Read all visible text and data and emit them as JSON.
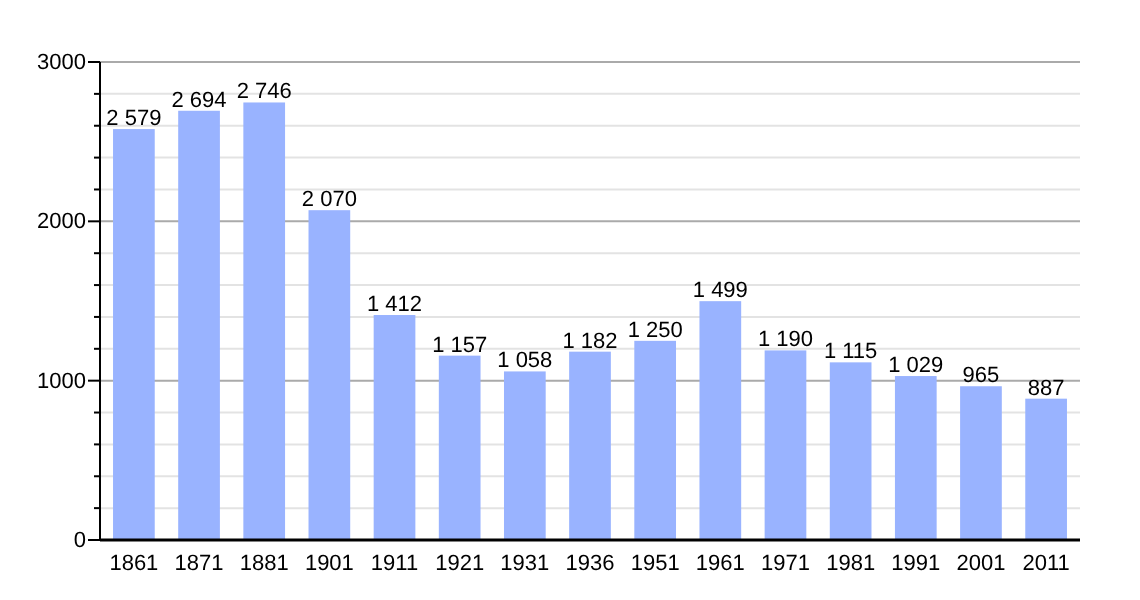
{
  "chart_data": {
    "type": "bar",
    "categories": [
      "1861",
      "1871",
      "1881",
      "1901",
      "1911",
      "1921",
      "1931",
      "1936",
      "1951",
      "1961",
      "1971",
      "1981",
      "1991",
      "2001",
      "2011"
    ],
    "values": [
      2579,
      2694,
      2746,
      2070,
      1412,
      1157,
      1058,
      1182,
      1250,
      1499,
      1190,
      1115,
      1029,
      965,
      887
    ],
    "value_labels": [
      "2 579",
      "2 694",
      "2 746",
      "2 070",
      "1 412",
      "1 157",
      "1 058",
      "1 182",
      "1 250",
      "1 499",
      "1 190",
      "1 115",
      "1 029",
      "965",
      "887"
    ],
    "color": "#99b3ff",
    "ylim": [
      0,
      3000
    ],
    "yticks": [
      0,
      {
        "value": 200,
        "label": null
      },
      {
        "value": 400,
        "label": null
      },
      {
        "value": 600,
        "label": null
      },
      {
        "value": 800,
        "label": null
      },
      1000,
      {
        "value": 1200,
        "label": null
      },
      {
        "value": 1400,
        "label": null
      },
      {
        "value": 1600,
        "label": null
      },
      {
        "value": 1800,
        "label": null
      },
      2000,
      {
        "value": 2200,
        "label": null
      },
      {
        "value": 2400,
        "label": null
      },
      {
        "value": 2600,
        "label": null
      },
      {
        "value": 2800,
        "label": null
      },
      3000
    ],
    "grid": "y"
  }
}
